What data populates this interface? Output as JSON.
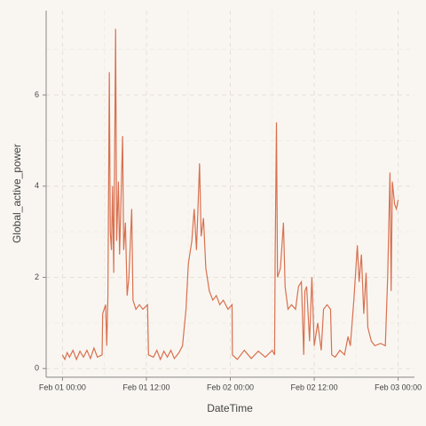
{
  "chart_data": {
    "type": "line",
    "x_label": "DateTime",
    "y_label": "Global_active_power",
    "xlim": [
      "Jan 31 21:40",
      "Feb 03 02:20"
    ],
    "xticks": [
      "Feb 01 00:00",
      "Feb 01 12:00",
      "Feb 02 00:00",
      "Feb 02 12:00",
      "Feb 03 00:00"
    ],
    "ylim": [
      -0.19,
      7.85
    ],
    "yticks": [
      0,
      2,
      4,
      6
    ],
    "grid": true,
    "series": [
      {
        "name": "Global_active_power",
        "color": "#d9704f",
        "x": [
          "Feb 01 00:00",
          "Feb 01 00:20",
          "Feb 01 00:40",
          "Feb 01 01:00",
          "Feb 01 01:30",
          "Feb 01 02:00",
          "Feb 01 02:30",
          "Feb 01 03:00",
          "Feb 01 03:30",
          "Feb 01 04:00",
          "Feb 01 04:30",
          "Feb 01 05:00",
          "Feb 01 05:40",
          "Feb 01 05:45",
          "Feb 01 06:10",
          "Feb 01 06:20",
          "Feb 01 06:30",
          "Feb 01 06:42",
          "Feb 01 06:50",
          "Feb 01 07:00",
          "Feb 01 07:10",
          "Feb 01 07:20",
          "Feb 01 07:36",
          "Feb 01 07:45",
          "Feb 01 08:00",
          "Feb 01 08:10",
          "Feb 01 08:36",
          "Feb 01 08:45",
          "Feb 01 09:00",
          "Feb 01 09:15",
          "Feb 01 09:30",
          "Feb 01 09:54",
          "Feb 01 10:05",
          "Feb 01 10:30",
          "Feb 01 11:00",
          "Feb 01 11:30",
          "Feb 01 12:10",
          "Feb 01 12:18",
          "Feb 01 13:00",
          "Feb 01 13:30",
          "Feb 01 14:00",
          "Feb 01 14:30",
          "Feb 01 15:00",
          "Feb 01 15:30",
          "Feb 01 16:00",
          "Feb 01 16:40",
          "Feb 01 17:10",
          "Feb 01 17:40",
          "Feb 01 18:00",
          "Feb 01 18:30",
          "Feb 01 18:50",
          "Feb 01 19:10",
          "Feb 01 19:36",
          "Feb 01 19:50",
          "Feb 01 20:10",
          "Feb 01 20:30",
          "Feb 01 21:00",
          "Feb 01 21:30",
          "Feb 01 22:00",
          "Feb 01 22:30",
          "Feb 01 23:00",
          "Feb 01 23:40",
          "Feb 02 00:15",
          "Feb 02 00:18",
          "Feb 02 01:00",
          "Feb 02 02:00",
          "Feb 02 03:00",
          "Feb 02 04:00",
          "Feb 02 05:00",
          "Feb 02 06:00",
          "Feb 02 06:20",
          "Feb 02 06:25",
          "Feb 02 06:36",
          "Feb 02 06:45",
          "Feb 02 07:10",
          "Feb 02 07:36",
          "Feb 02 07:50",
          "Feb 02 08:15",
          "Feb 02 08:45",
          "Feb 02 09:20",
          "Feb 02 09:45",
          "Feb 02 10:10",
          "Feb 02 10:30",
          "Feb 02 10:40",
          "Feb 02 10:55",
          "Feb 02 11:20",
          "Feb 02 11:40",
          "Feb 02 12:00",
          "Feb 02 12:30",
          "Feb 02 13:00",
          "Feb 02 13:20",
          "Feb 02 13:50",
          "Feb 02 14:20",
          "Feb 02 14:30",
          "Feb 02 15:00",
          "Feb 02 15:40",
          "Feb 02 16:20",
          "Feb 02 16:50",
          "Feb 02 17:10",
          "Feb 02 17:40",
          "Feb 02 18:10",
          "Feb 02 18:25",
          "Feb 02 18:45",
          "Feb 02 19:05",
          "Feb 02 19:25",
          "Feb 02 19:40",
          "Feb 02 20:10",
          "Feb 02 20:40",
          "Feb 02 21:30",
          "Feb 02 22:10",
          "Feb 02 22:30",
          "Feb 02 22:50",
          "Feb 02 23:00",
          "Feb 02 23:10",
          "Feb 02 23:30",
          "Feb 02 23:45",
          "Feb 03 00:00"
        ],
        "values": [
          0.3,
          0.2,
          0.35,
          0.25,
          0.4,
          0.2,
          0.38,
          0.25,
          0.4,
          0.22,
          0.45,
          0.25,
          0.3,
          1.2,
          1.4,
          0.5,
          1.6,
          6.5,
          3.0,
          2.6,
          4.0,
          2.1,
          7.45,
          2.8,
          4.1,
          2.5,
          5.1,
          2.6,
          3.2,
          1.6,
          2.0,
          3.5,
          1.5,
          1.3,
          1.4,
          1.3,
          1.4,
          0.3,
          0.25,
          0.4,
          0.2,
          0.38,
          0.25,
          0.4,
          0.22,
          0.35,
          0.5,
          1.3,
          2.3,
          2.8,
          3.5,
          2.6,
          4.5,
          2.9,
          3.3,
          2.2,
          1.7,
          1.5,
          1.6,
          1.4,
          1.5,
          1.3,
          1.4,
          0.3,
          0.2,
          0.4,
          0.22,
          0.38,
          0.25,
          0.4,
          0.3,
          2.5,
          5.4,
          2.0,
          2.2,
          3.2,
          1.8,
          1.3,
          1.4,
          1.3,
          1.8,
          1.9,
          0.3,
          1.7,
          1.8,
          0.6,
          2.0,
          0.5,
          1.0,
          0.4,
          1.3,
          1.4,
          1.3,
          0.3,
          0.25,
          0.4,
          0.3,
          0.7,
          0.5,
          1.5,
          2.7,
          1.9,
          2.5,
          1.2,
          2.1,
          0.9,
          0.6,
          0.5,
          0.55,
          0.5,
          2.0,
          4.3,
          1.7,
          4.1,
          3.6,
          3.5,
          3.7
        ]
      }
    ]
  }
}
